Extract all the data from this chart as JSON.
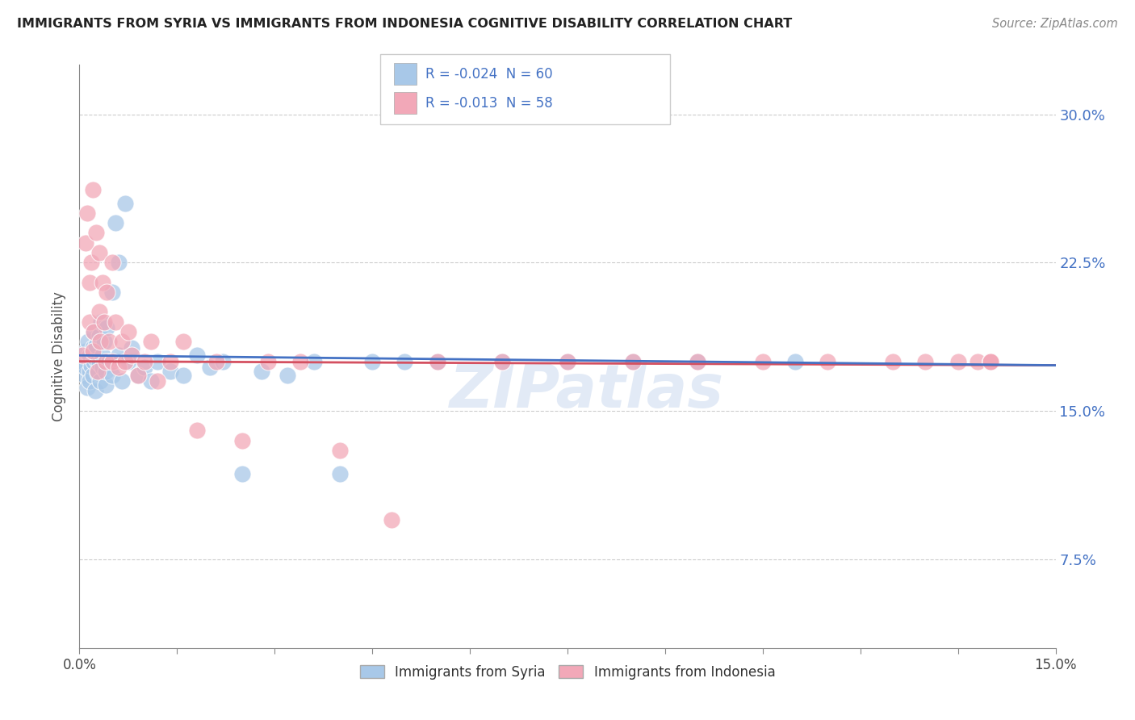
{
  "title": "IMMIGRANTS FROM SYRIA VS IMMIGRANTS FROM INDONESIA COGNITIVE DISABILITY CORRELATION CHART",
  "source": "Source: ZipAtlas.com",
  "ylabel": "Cognitive Disability",
  "ytick_vals": [
    0.075,
    0.15,
    0.225,
    0.3
  ],
  "ytick_labels": [
    "7.5%",
    "15.0%",
    "22.5%",
    "30.0%"
  ],
  "xmin": 0.0,
  "xmax": 0.15,
  "ymin": 0.03,
  "ymax": 0.325,
  "syria_R": -0.024,
  "syria_N": 60,
  "indonesia_R": -0.013,
  "indonesia_N": 58,
  "legend_labels": [
    "Immigrants from Syria",
    "Immigrants from Indonesia"
  ],
  "syria_color": "#a8c8e8",
  "indonesia_color": "#f2a8b8",
  "syria_line_color": "#4472c4",
  "indonesia_line_color": "#d45060",
  "watermark": "ZIPatlas",
  "syria_x": [
    0.0005,
    0.0008,
    0.001,
    0.001,
    0.0012,
    0.0013,
    0.0015,
    0.0015,
    0.0016,
    0.0018,
    0.002,
    0.002,
    0.0022,
    0.0022,
    0.0024,
    0.0025,
    0.0026,
    0.0028,
    0.003,
    0.003,
    0.0032,
    0.0033,
    0.0035,
    0.0036,
    0.0038,
    0.004,
    0.004,
    0.0042,
    0.0045,
    0.005,
    0.005,
    0.0055,
    0.006,
    0.006,
    0.0065,
    0.007,
    0.0075,
    0.008,
    0.009,
    0.01,
    0.011,
    0.012,
    0.014,
    0.016,
    0.018,
    0.02,
    0.022,
    0.025,
    0.028,
    0.032,
    0.036,
    0.04,
    0.045,
    0.05,
    0.055,
    0.065,
    0.075,
    0.085,
    0.095,
    0.11
  ],
  "syria_y": [
    0.175,
    0.168,
    0.172,
    0.18,
    0.162,
    0.185,
    0.17,
    0.178,
    0.165,
    0.173,
    0.168,
    0.182,
    0.175,
    0.19,
    0.16,
    0.176,
    0.183,
    0.169,
    0.174,
    0.188,
    0.165,
    0.195,
    0.172,
    0.178,
    0.185,
    0.163,
    0.17,
    0.192,
    0.175,
    0.21,
    0.168,
    0.245,
    0.225,
    0.178,
    0.165,
    0.255,
    0.175,
    0.182,
    0.168,
    0.172,
    0.165,
    0.175,
    0.17,
    0.168,
    0.178,
    0.172,
    0.175,
    0.118,
    0.17,
    0.168,
    0.175,
    0.118,
    0.175,
    0.175,
    0.175,
    0.175,
    0.175,
    0.175,
    0.175,
    0.175
  ],
  "indonesia_x": [
    0.0005,
    0.001,
    0.0012,
    0.0015,
    0.0015,
    0.0018,
    0.002,
    0.002,
    0.0022,
    0.0025,
    0.0028,
    0.003,
    0.003,
    0.0032,
    0.0035,
    0.0038,
    0.004,
    0.0042,
    0.0045,
    0.005,
    0.005,
    0.0055,
    0.006,
    0.0065,
    0.007,
    0.0075,
    0.008,
    0.009,
    0.01,
    0.011,
    0.012,
    0.014,
    0.016,
    0.018,
    0.021,
    0.025,
    0.029,
    0.034,
    0.04,
    0.048,
    0.055,
    0.065,
    0.075,
    0.085,
    0.095,
    0.105,
    0.115,
    0.125,
    0.13,
    0.135,
    0.138,
    0.14,
    0.14,
    0.14,
    0.14,
    0.14,
    0.14,
    0.14
  ],
  "indonesia_y": [
    0.178,
    0.235,
    0.25,
    0.195,
    0.215,
    0.225,
    0.18,
    0.262,
    0.19,
    0.24,
    0.17,
    0.2,
    0.23,
    0.185,
    0.215,
    0.195,
    0.175,
    0.21,
    0.185,
    0.175,
    0.225,
    0.195,
    0.172,
    0.185,
    0.175,
    0.19,
    0.178,
    0.168,
    0.175,
    0.185,
    0.165,
    0.175,
    0.185,
    0.14,
    0.175,
    0.135,
    0.175,
    0.175,
    0.13,
    0.095,
    0.175,
    0.175,
    0.175,
    0.175,
    0.175,
    0.175,
    0.175,
    0.175,
    0.175,
    0.175,
    0.175,
    0.175,
    0.175,
    0.175,
    0.175,
    0.175,
    0.175,
    0.175
  ]
}
